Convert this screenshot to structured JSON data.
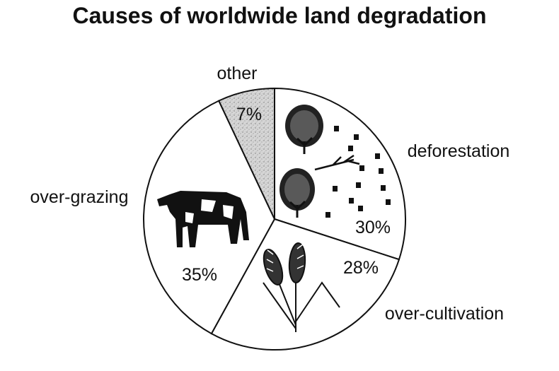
{
  "chart_data": {
    "type": "pie",
    "title": "Causes of worldwide land degradation",
    "slices": [
      {
        "label": "deforestation",
        "value": 30,
        "value_label": "30%",
        "fill": "#ffffff",
        "icon": "trees-and-stumps-icon"
      },
      {
        "label": "over-cultivation",
        "value": 28,
        "value_label": "28%",
        "fill": "#ffffff",
        "icon": "wheat-icon"
      },
      {
        "label": "over-grazing",
        "value": 35,
        "value_label": "35%",
        "fill": "#ffffff",
        "icon": "cow-icon"
      },
      {
        "label": "other",
        "value": 7,
        "value_label": "7%",
        "fill": "#cfcfcf",
        "icon": ""
      }
    ],
    "start_at": "top",
    "direction": "clockwise",
    "legend": "none"
  }
}
